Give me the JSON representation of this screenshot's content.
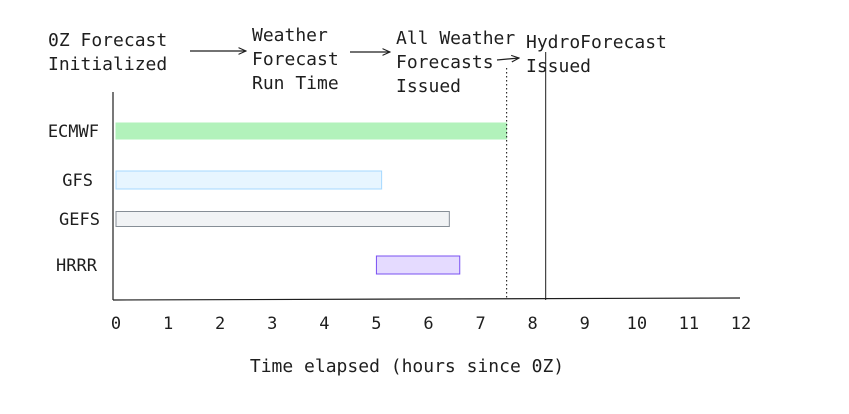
{
  "chart_data": {
    "type": "bar",
    "orientation": "horizontal-timeline",
    "xlabel": "Time elapsed (hours since 0Z)",
    "xlim": [
      0,
      12
    ],
    "x_ticks": [
      "0",
      "1",
      "2",
      "3",
      "4",
      "5",
      "6",
      "7",
      "8",
      "9",
      "10",
      "11",
      "12"
    ],
    "grid": false,
    "series": [
      {
        "name": "ECMWF",
        "start": 0,
        "end": 7.5,
        "color": "#b2f2bb",
        "stroke": "#b2f2bb"
      },
      {
        "name": "GFS",
        "start": 0,
        "end": 5.1,
        "color": "#e7f5ff",
        "stroke": "#a5d8ff"
      },
      {
        "name": "GEFS",
        "start": 0,
        "end": 6.4,
        "color": "#f1f3f5",
        "stroke": "#868e96"
      },
      {
        "name": "HRRR",
        "start": 5.0,
        "end": 6.6,
        "color": "#e5dbff",
        "stroke": "#7950f2"
      }
    ],
    "markers": [
      {
        "x": 7.5,
        "style": "dotted"
      },
      {
        "x": 8.25,
        "style": "solid"
      }
    ],
    "stages": [
      {
        "lines": [
          "0Z Forecast",
          "Initialized"
        ]
      },
      {
        "lines": [
          "Weather",
          "Forecast",
          "Run Time"
        ]
      },
      {
        "lines": [
          "All Weather",
          "Forecasts",
          "Issued"
        ]
      },
      {
        "lines": [
          "HydroForecast",
          "Issued"
        ]
      }
    ]
  }
}
